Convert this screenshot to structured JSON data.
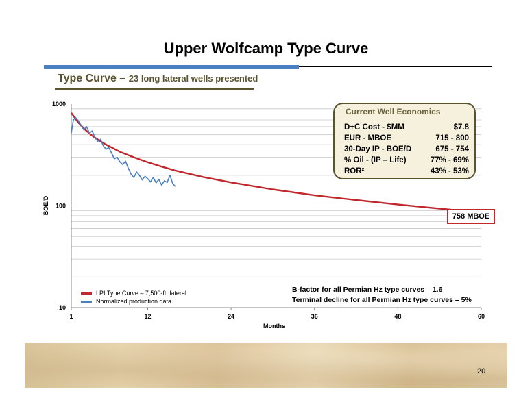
{
  "slide": {
    "title": "Upper Wolfcamp Type Curve",
    "subtitle_main": "Type Curve – ",
    "subtitle_detail": "23 long lateral wells presented",
    "page_number": "20"
  },
  "economics": {
    "title": "Current Well Economics",
    "rows": [
      {
        "label": "D+C Cost - $MM",
        "value": "$7.8"
      },
      {
        "label": "EUR - MBOE",
        "value": "715 - 800"
      },
      {
        "label": "30-Day IP - BOE/D",
        "value": "675 - 754"
      },
      {
        "label": "% Oil - (IP – Life)",
        "value": "77% - 69%"
      },
      {
        "label": "ROR²",
        "value": "43% - 53%"
      }
    ]
  },
  "callout": "758 MBOE",
  "notes": [
    "B-factor for all Permian Hz type curves – 1.6",
    "Terminal decline for all Permian Hz type curves – 5%"
  ],
  "colors": {
    "type_curve": "#c0282d",
    "production": "#4a7fc1"
  },
  "chart_data": {
    "type": "line",
    "xlabel": "Months",
    "ylabel": "BOE/D",
    "x_ticks": [
      1,
      12,
      24,
      36,
      48,
      60
    ],
    "xlim": [
      1,
      60
    ],
    "y_scale": "log",
    "ylim": [
      10,
      1000
    ],
    "y_tick_labels": [
      "10",
      "100",
      "1000"
    ],
    "legend_position": "bottom-left",
    "series": [
      {
        "name": "LPI Type Curve – 7,500-ft. lateral",
        "x": [
          1,
          2,
          3,
          4,
          5,
          6,
          8,
          10,
          12,
          14,
          16,
          20,
          24,
          30,
          36,
          42,
          48,
          54,
          60
        ],
        "y": [
          820,
          660,
          560,
          490,
          440,
          400,
          340,
          300,
          268,
          243,
          222,
          192,
          170,
          145,
          127,
          114,
          103,
          94,
          86
        ]
      },
      {
        "name": "Normalized production data",
        "x": [
          1,
          1.3,
          1.6,
          2,
          2.4,
          2.8,
          3.2,
          3.6,
          4,
          4.4,
          4.8,
          5.2,
          5.6,
          6,
          6.4,
          6.8,
          7.2,
          7.6,
          8,
          8.4,
          8.8,
          9.2,
          9.6,
          10,
          10.4,
          10.8,
          11.2,
          11.6,
          12,
          12.4,
          12.8,
          13.2,
          13.6,
          14,
          14.4,
          14.8,
          15.2,
          15.6,
          16
        ],
        "y": [
          520,
          700,
          740,
          690,
          620,
          560,
          600,
          520,
          545,
          470,
          430,
          450,
          390,
          360,
          375,
          330,
          290,
          300,
          270,
          255,
          275,
          235,
          205,
          190,
          215,
          200,
          180,
          195,
          185,
          172,
          190,
          168,
          182,
          160,
          176,
          170,
          200,
          165,
          155
        ]
      }
    ]
  }
}
